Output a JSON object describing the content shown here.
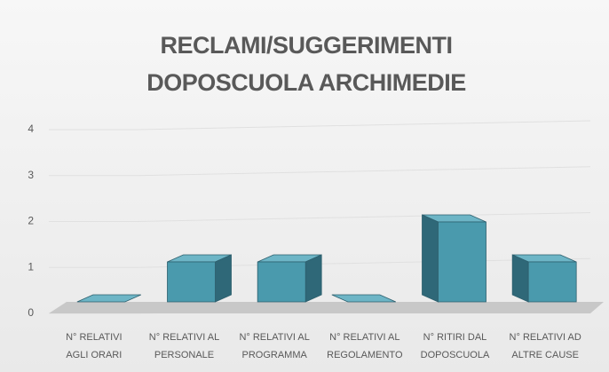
{
  "chart_data": {
    "type": "bar3d",
    "title": "RECLAMI/SUGGERIMENTI DOPOSCUOLA ARCHIMEDIE",
    "categories": [
      "N° RELATIVI\nAGLI ORARI",
      "N° RELATIVI AL\nPERSONALE",
      "N° RELATIVI AL\nPROGRAMMA",
      "N° RELATIVI AL\nREGOLAMENTO",
      "N° RITIRI DAL\nDOPOSCUOLA",
      "N° RELATIVI AD\nALTRE CAUSE"
    ],
    "values": [
      0,
      1,
      1,
      0,
      2,
      1
    ],
    "color": "#4a9aad",
    "ylim": [
      0,
      4
    ],
    "yticks": [
      0,
      1,
      2,
      3,
      4
    ],
    "grid": true
  }
}
